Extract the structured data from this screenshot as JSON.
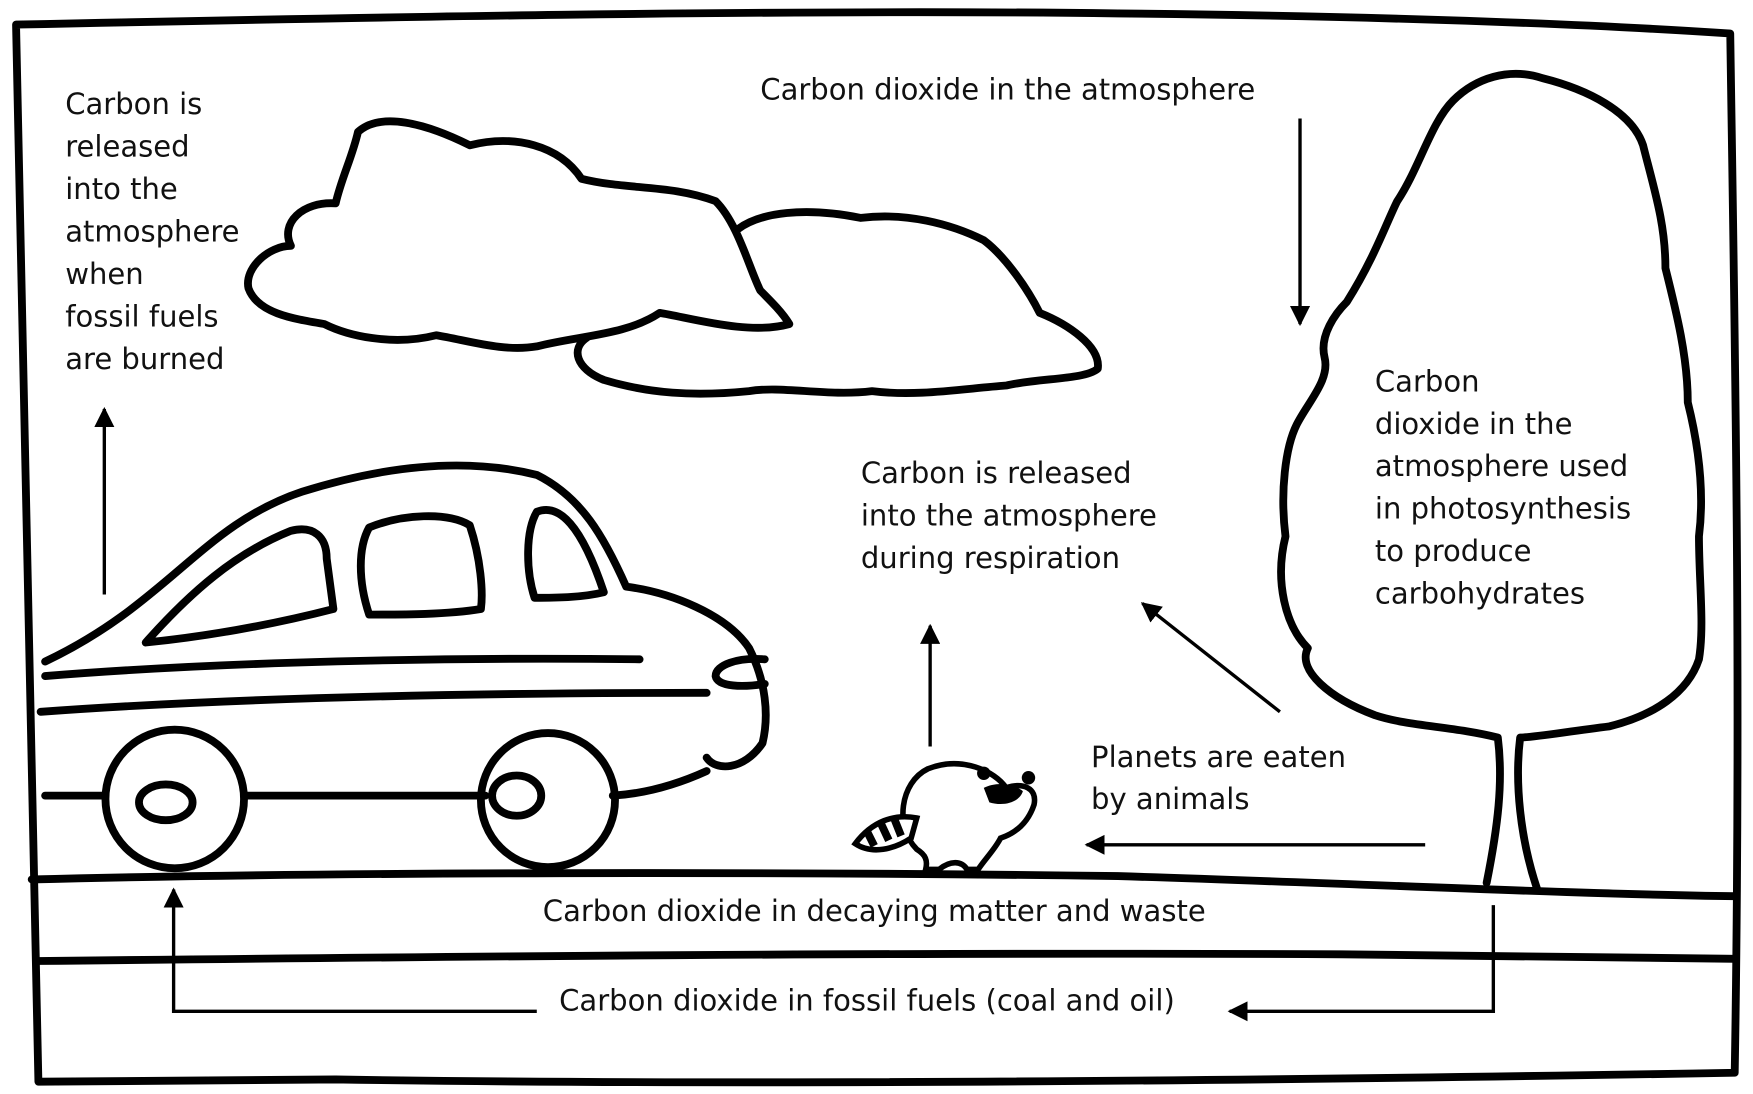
{
  "labels": {
    "fossil_release": [
      "Carbon is",
      "released",
      "into the",
      "atmosphere",
      "when",
      "fossil fuels",
      "are burned"
    ],
    "atmosphere": "Carbon dioxide in the atmosphere",
    "photosynthesis": [
      "Carbon",
      "dioxide in the",
      "atmosphere used",
      "in photosynthesis",
      "to produce",
      "carbohydrates"
    ],
    "respiration": [
      "Carbon is released",
      "into the atmosphere",
      "during respiration"
    ],
    "eaten": [
      "Planets are eaten",
      "by animals"
    ],
    "decaying": "Carbon dioxide in decaying matter and waste",
    "fossil_fuels": "Carbon dioxide in fossil fuels (coal and oil)"
  }
}
